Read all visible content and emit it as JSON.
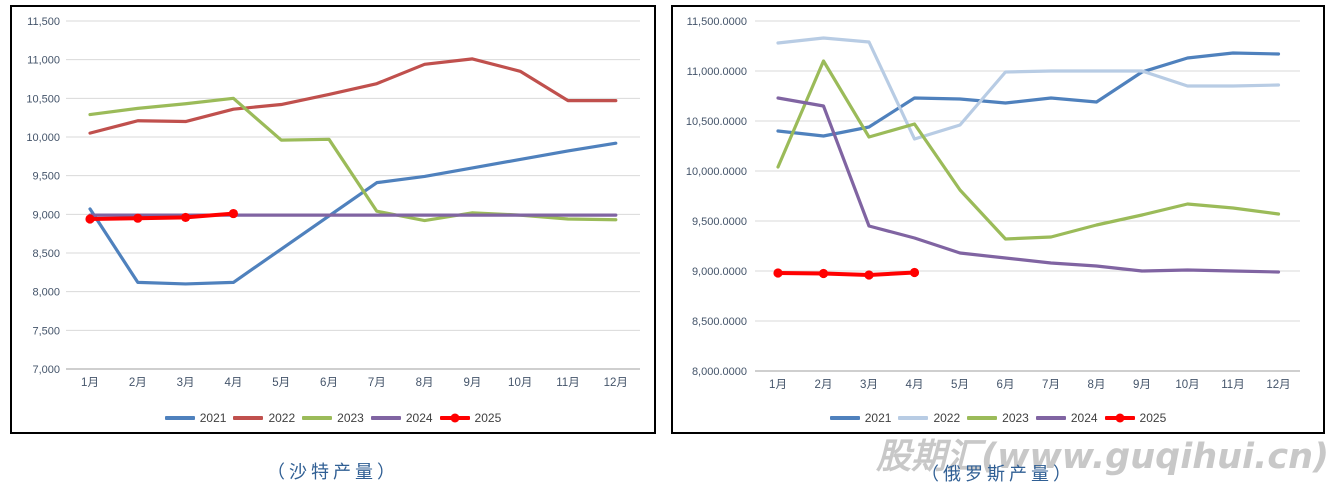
{
  "watermark": {
    "text": "股期汇(www.guqihui.cn)",
    "color": "#c8c8c8"
  },
  "colors": {
    "grid": "#d9d9d9",
    "axis_baseline": "#bfbfbf",
    "tick_text": "#44546a",
    "legend_text": "#404040",
    "caption_text": "#305f94",
    "panel_border": "#000000"
  },
  "chart_data": [
    {
      "type": "line",
      "title": "（沙特产量）",
      "x": [
        "1月",
        "2月",
        "3月",
        "4月",
        "5月",
        "6月",
        "7月",
        "8月",
        "9月",
        "10月",
        "11月",
        "12月"
      ],
      "ylim": [
        7000,
        11500
      ],
      "y_tick_step": 500,
      "y_tick_labels": [
        "11,500",
        "11,000",
        "10,500",
        "10,000",
        "9,500",
        "9,000",
        "8,500",
        "8,000",
        "7,500",
        "7,000"
      ],
      "grid": true,
      "legend_position": "bottom",
      "series": [
        {
          "name": "2021",
          "color": "#4F81BD",
          "marker": "none",
          "values": [
            9070,
            8120,
            8100,
            8120,
            8550,
            8980,
            9410,
            9490,
            9600,
            9710,
            9820,
            9920
          ]
        },
        {
          "name": "2022",
          "color": "#C0504D",
          "marker": "none",
          "values": [
            10050,
            10210,
            10200,
            10360,
            10420,
            10550,
            10690,
            10940,
            11010,
            10850,
            10470,
            10470
          ]
        },
        {
          "name": "2023",
          "color": "#9BBB59",
          "marker": "none",
          "values": [
            10290,
            10370,
            10430,
            10500,
            9960,
            9970,
            9040,
            8920,
            9020,
            8990,
            8940,
            8930
          ]
        },
        {
          "name": "2024",
          "color": "#8064A2",
          "marker": "none",
          "values": [
            8990,
            8990,
            8990,
            8990,
            8990,
            8990,
            8990,
            8990,
            8990,
            8990,
            8990,
            8990
          ]
        },
        {
          "name": "2025",
          "color": "#FF0000",
          "marker": "circle",
          "values": [
            8940,
            8950,
            8960,
            9010
          ]
        }
      ]
    },
    {
      "type": "line",
      "title": "（俄罗斯产量）",
      "x": [
        "1月",
        "2月",
        "3月",
        "4月",
        "5月",
        "6月",
        "7月",
        "8月",
        "9月",
        "10月",
        "11月",
        "12月"
      ],
      "ylim": [
        8000,
        11500
      ],
      "y_tick_step": 500,
      "y_tick_labels": [
        "11,500.0000",
        "11,000.0000",
        "10,500.0000",
        "10,000.0000",
        "9,500.0000",
        "9,000.0000",
        "8,500.0000",
        "8,000.0000"
      ],
      "grid": true,
      "legend_position": "bottom",
      "series": [
        {
          "name": "2021",
          "color": "#4F81BD",
          "marker": "none",
          "values": [
            10400,
            10350,
            10440,
            10730,
            10720,
            10680,
            10730,
            10690,
            10990,
            11130,
            11180,
            11170
          ]
        },
        {
          "name": "2022",
          "color": "#B8CCE4",
          "marker": "none",
          "values": [
            11280,
            11330,
            11290,
            10320,
            10460,
            10990,
            11000,
            11000,
            11000,
            10850,
            10850,
            10860
          ]
        },
        {
          "name": "2023",
          "color": "#9BBB59",
          "marker": "none",
          "values": [
            10040,
            11100,
            10340,
            10470,
            9810,
            9320,
            9340,
            9460,
            9560,
            9670,
            9630,
            9570
          ]
        },
        {
          "name": "2024",
          "color": "#8064A2",
          "marker": "none",
          "values": [
            10730,
            10650,
            9450,
            9330,
            9180,
            9130,
            9080,
            9050,
            9000,
            9010,
            9000,
            8990
          ]
        },
        {
          "name": "2025",
          "color": "#FF0000",
          "marker": "circle",
          "values": [
            8980,
            8975,
            8960,
            8985
          ]
        }
      ]
    }
  ]
}
